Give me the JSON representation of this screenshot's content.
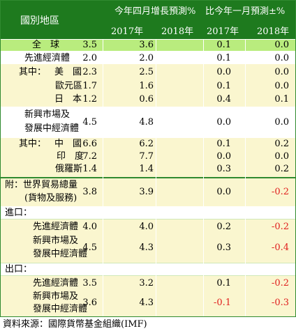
{
  "header": {
    "region_label": "國別地區",
    "group1_label": "今年四月增長預測%",
    "group2_label": "比今年一月預測±%",
    "col1": "2017年",
    "col2": "2018年",
    "col3": "2017年",
    "col4": "2018年"
  },
  "rows": [
    {
      "label": "全　球",
      "v": [
        "3.5",
        "3.6",
        "0.1",
        "0.0"
      ]
    },
    {
      "label": "先進經濟體",
      "v": [
        "2.0",
        "2.0",
        "0.1",
        "0.0"
      ]
    },
    {
      "prefix": "其中：",
      "label": "美　國",
      "v": [
        "2.3",
        "2.5",
        "0.0",
        "0.0"
      ]
    },
    {
      "label": "歐元區",
      "v": [
        "1.7",
        "1.6",
        "0.1",
        "0.0"
      ]
    },
    {
      "label": "日　本",
      "v": [
        "1.2",
        "0.6",
        "0.4",
        "0.1"
      ]
    },
    {
      "label": "新興市場及",
      "label2": "發展中經濟體",
      "v": [
        "4.5",
        "4.8",
        "0.0",
        "0.0"
      ]
    },
    {
      "prefix": "其中：",
      "label": "中　國",
      "v": [
        "6.6",
        "6.2",
        "0.1",
        "0.2"
      ]
    },
    {
      "label": "印　度",
      "v": [
        "7.2",
        "7.7",
        "0.0",
        "0.0"
      ]
    },
    {
      "label": "俄羅斯",
      "v": [
        "1.4",
        "1.4",
        "0.3",
        "0.2"
      ]
    },
    {
      "label": "附：世界貿易總量",
      "label2": "(貨物及服務)",
      "v": [
        "3.8",
        "3.9",
        "0.0",
        "-0.2"
      ]
    },
    {
      "label": "進口："
    },
    {
      "label": "先進經濟體",
      "v": [
        "4.0",
        "4.0",
        "0.2",
        "-0.2"
      ]
    },
    {
      "label": "新興市場及",
      "label2": "發展中經濟體",
      "v": [
        "4.5",
        "4.3",
        "0.3",
        "-0.4"
      ]
    },
    {
      "label": "出口："
    },
    {
      "label": "先進經濟體",
      "v": [
        "3.5",
        "3.2",
        "0.1",
        "-0.2"
      ]
    },
    {
      "label": "新興市場及",
      "label2": "發展中經濟體",
      "v": [
        "3.6",
        "4.3",
        "-0.1",
        "-0.3"
      ]
    }
  ],
  "source": "資料來源：國際貨幣基金組織(IMF)",
  "colors": {
    "header_green": "#1e7a1e",
    "highlight_green": "#b9ec7e",
    "row_yellow": "#faf6cf",
    "negative_red": "#e0201e"
  }
}
